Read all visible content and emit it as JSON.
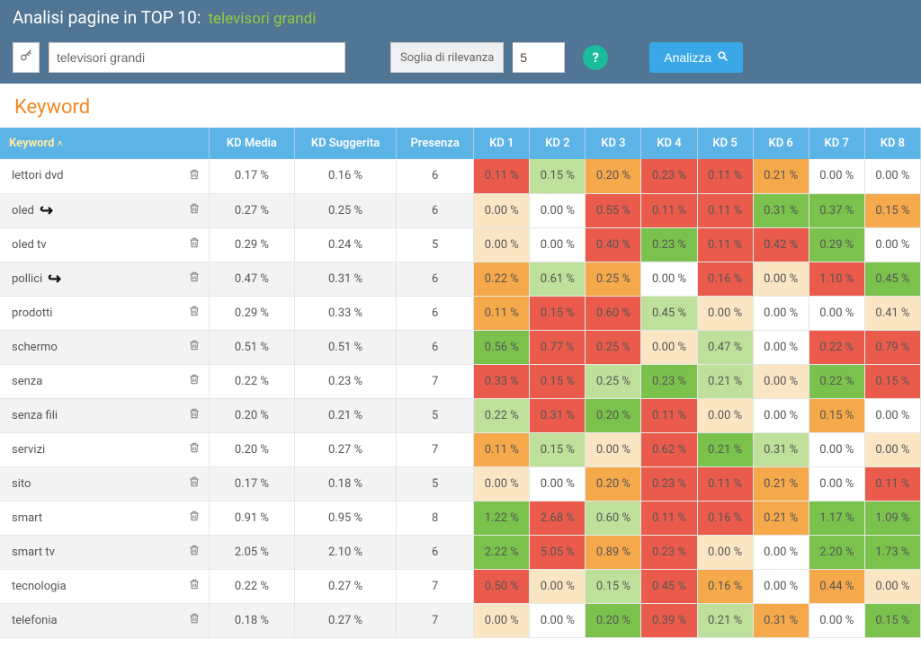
{
  "header": {
    "title_prefix": "Analisi pagine in TOP 10:",
    "title_query": "televisori grandi"
  },
  "toolbar": {
    "key_icon": "⊶",
    "search_value": "televisori grandi",
    "threshold_label": "Soglia di rilevanza",
    "threshold_value": "5",
    "help_label": "?",
    "analyze_label": "Analizza"
  },
  "section_title": "Keyword",
  "columns": {
    "keyword": "Keyword",
    "kd_media": "KD Media",
    "kd_sugg": "KD Suggerita",
    "presenza": "Presenza",
    "kd1": "KD 1",
    "kd2": "KD 2",
    "kd3": "KD 3",
    "kd4": "KD 4",
    "kd5": "KD 5",
    "kd6": "KD 6",
    "kd7": "KD 7",
    "kd8": "KD 8"
  },
  "colors": {
    "header_bg": "#517594",
    "accent_green": "#8fce3f",
    "th_bg": "#5bb3e6",
    "analyze_bg": "#3aa7e6",
    "help_bg": "#1abc9c",
    "orange_title": "#f08a24",
    "palette_red": "#ea5b4c",
    "palette_orange": "#f5a94b",
    "palette_cream": "#fbe6c4",
    "palette_lightgreen": "#bfe09a",
    "palette_green": "#7bc24d",
    "palette_white": "#ffffff"
  },
  "rows": [
    {
      "name": "lettori dvd",
      "arrow": false,
      "media": "0.17 %",
      "sugg": "0.16 %",
      "pres": "6",
      "kd": [
        [
          "0.11 %",
          "red"
        ],
        [
          "0.15 %",
          "lightgreen"
        ],
        [
          "0.20 %",
          "orange"
        ],
        [
          "0.23 %",
          "red"
        ],
        [
          "0.11 %",
          "red"
        ],
        [
          "0.21 %",
          "orange"
        ],
        [
          "0.00 %",
          "white"
        ],
        [
          "0.00 %",
          "white"
        ]
      ]
    },
    {
      "name": "oled",
      "arrow": true,
      "media": "0.27 %",
      "sugg": "0.25 %",
      "pres": "6",
      "kd": [
        [
          "0.00 %",
          "cream"
        ],
        [
          "0.00 %",
          "white"
        ],
        [
          "0.55 %",
          "red"
        ],
        [
          "0.11 %",
          "red"
        ],
        [
          "0.11 %",
          "red"
        ],
        [
          "0.31 %",
          "green"
        ],
        [
          "0.37 %",
          "green"
        ],
        [
          "0.15 %",
          "orange"
        ]
      ]
    },
    {
      "name": "oled tv",
      "arrow": false,
      "media": "0.29 %",
      "sugg": "0.24 %",
      "pres": "5",
      "kd": [
        [
          "0.00 %",
          "cream"
        ],
        [
          "0.00 %",
          "white"
        ],
        [
          "0.40 %",
          "red"
        ],
        [
          "0.23 %",
          "green"
        ],
        [
          "0.11 %",
          "red"
        ],
        [
          "0.42 %",
          "red"
        ],
        [
          "0.29 %",
          "green"
        ],
        [
          "0.00 %",
          "white"
        ]
      ]
    },
    {
      "name": "pollici",
      "arrow": true,
      "media": "0.47 %",
      "sugg": "0.31 %",
      "pres": "6",
      "kd": [
        [
          "0.22 %",
          "orange"
        ],
        [
          "0.61 %",
          "lightgreen"
        ],
        [
          "0.25 %",
          "orange"
        ],
        [
          "0.00 %",
          "white"
        ],
        [
          "0.16 %",
          "red"
        ],
        [
          "0.00 %",
          "cream"
        ],
        [
          "1.10 %",
          "red"
        ],
        [
          "0.45 %",
          "green"
        ]
      ]
    },
    {
      "name": "prodotti",
      "arrow": false,
      "media": "0.29 %",
      "sugg": "0.33 %",
      "pres": "6",
      "kd": [
        [
          "0.11 %",
          "orange"
        ],
        [
          "0.15 %",
          "red"
        ],
        [
          "0.60 %",
          "red"
        ],
        [
          "0.45 %",
          "lightgreen"
        ],
        [
          "0.00 %",
          "cream"
        ],
        [
          "0.00 %",
          "white"
        ],
        [
          "0.00 %",
          "white"
        ],
        [
          "0.41 %",
          "cream"
        ]
      ]
    },
    {
      "name": "schermo",
      "arrow": false,
      "media": "0.51 %",
      "sugg": "0.51 %",
      "pres": "6",
      "kd": [
        [
          "0.56 %",
          "green"
        ],
        [
          "0.77 %",
          "red"
        ],
        [
          "0.25 %",
          "red"
        ],
        [
          "0.00 %",
          "cream"
        ],
        [
          "0.47 %",
          "lightgreen"
        ],
        [
          "0.00 %",
          "white"
        ],
        [
          "0.22 %",
          "red"
        ],
        [
          "0.79 %",
          "red"
        ]
      ]
    },
    {
      "name": "senza",
      "arrow": false,
      "media": "0.22 %",
      "sugg": "0.23 %",
      "pres": "7",
      "kd": [
        [
          "0.33 %",
          "red"
        ],
        [
          "0.15 %",
          "red"
        ],
        [
          "0.25 %",
          "lightgreen"
        ],
        [
          "0.23 %",
          "green"
        ],
        [
          "0.21 %",
          "lightgreen"
        ],
        [
          "0.00 %",
          "cream"
        ],
        [
          "0.22 %",
          "green"
        ],
        [
          "0.15 %",
          "red"
        ]
      ]
    },
    {
      "name": "senza fili",
      "arrow": false,
      "media": "0.20 %",
      "sugg": "0.21 %",
      "pres": "5",
      "kd": [
        [
          "0.22 %",
          "lightgreen"
        ],
        [
          "0.31 %",
          "red"
        ],
        [
          "0.20 %",
          "green"
        ],
        [
          "0.11 %",
          "red"
        ],
        [
          "0.00 %",
          "cream"
        ],
        [
          "0.00 %",
          "white"
        ],
        [
          "0.15 %",
          "orange"
        ],
        [
          "0.00 %",
          "white"
        ]
      ]
    },
    {
      "name": "servizi",
      "arrow": false,
      "media": "0.20 %",
      "sugg": "0.27 %",
      "pres": "7",
      "kd": [
        [
          "0.11 %",
          "orange"
        ],
        [
          "0.15 %",
          "lightgreen"
        ],
        [
          "0.00 %",
          "cream"
        ],
        [
          "0.62 %",
          "red"
        ],
        [
          "0.21 %",
          "green"
        ],
        [
          "0.31 %",
          "lightgreen"
        ],
        [
          "0.00 %",
          "white"
        ],
        [
          "0.00 %",
          "cream"
        ]
      ]
    },
    {
      "name": "sito",
      "arrow": false,
      "media": "0.17 %",
      "sugg": "0.18 %",
      "pres": "5",
      "kd": [
        [
          "0.00 %",
          "cream"
        ],
        [
          "0.00 %",
          "white"
        ],
        [
          "0.20 %",
          "orange"
        ],
        [
          "0.23 %",
          "red"
        ],
        [
          "0.11 %",
          "red"
        ],
        [
          "0.21 %",
          "orange"
        ],
        [
          "0.00 %",
          "white"
        ],
        [
          "0.11 %",
          "red"
        ]
      ]
    },
    {
      "name": "smart",
      "arrow": false,
      "media": "0.91 %",
      "sugg": "0.95 %",
      "pres": "8",
      "kd": [
        [
          "1.22 %",
          "green"
        ],
        [
          "2.68 %",
          "red"
        ],
        [
          "0.60 %",
          "lightgreen"
        ],
        [
          "0.11 %",
          "red"
        ],
        [
          "0.16 %",
          "red"
        ],
        [
          "0.21 %",
          "orange"
        ],
        [
          "1.17 %",
          "green"
        ],
        [
          "1.09 %",
          "green"
        ]
      ]
    },
    {
      "name": "smart tv",
      "arrow": false,
      "media": "2.05 %",
      "sugg": "2.10 %",
      "pres": "6",
      "kd": [
        [
          "2.22 %",
          "green"
        ],
        [
          "5.05 %",
          "red"
        ],
        [
          "0.89 %",
          "orange"
        ],
        [
          "0.23 %",
          "red"
        ],
        [
          "0.00 %",
          "cream"
        ],
        [
          "0.00 %",
          "white"
        ],
        [
          "2.20 %",
          "green"
        ],
        [
          "1.73 %",
          "green"
        ]
      ]
    },
    {
      "name": "tecnologia",
      "arrow": false,
      "media": "0.22 %",
      "sugg": "0.27 %",
      "pres": "7",
      "kd": [
        [
          "0.50 %",
          "red"
        ],
        [
          "0.00 %",
          "cream"
        ],
        [
          "0.15 %",
          "lightgreen"
        ],
        [
          "0.45 %",
          "red"
        ],
        [
          "0.16 %",
          "orange"
        ],
        [
          "0.00 %",
          "white"
        ],
        [
          "0.44 %",
          "orange"
        ],
        [
          "0.00 %",
          "cream"
        ]
      ]
    },
    {
      "name": "telefonia",
      "arrow": false,
      "media": "0.18 %",
      "sugg": "0.27 %",
      "pres": "7",
      "kd": [
        [
          "0.00 %",
          "cream"
        ],
        [
          "0.00 %",
          "white"
        ],
        [
          "0.20 %",
          "green"
        ],
        [
          "0.39 %",
          "red"
        ],
        [
          "0.21 %",
          "lightgreen"
        ],
        [
          "0.31 %",
          "orange"
        ],
        [
          "0.00 %",
          "white"
        ],
        [
          "0.15 %",
          "green"
        ]
      ]
    }
  ]
}
